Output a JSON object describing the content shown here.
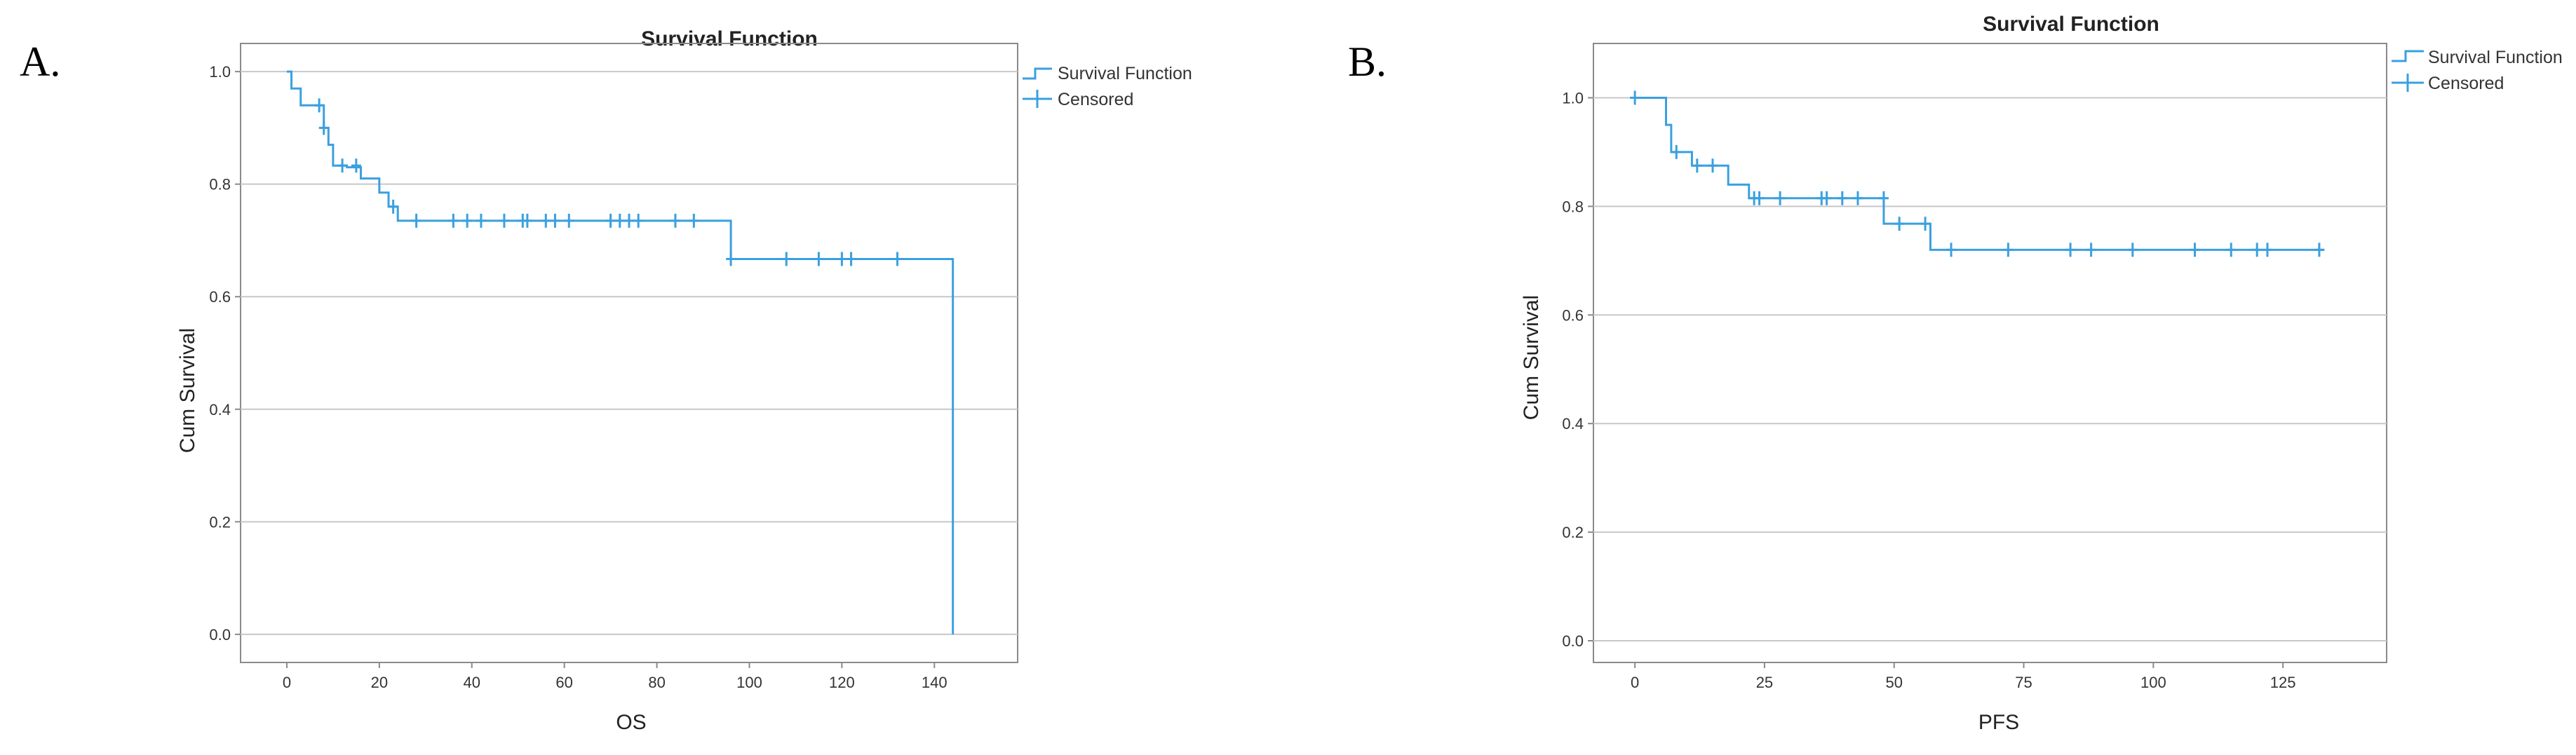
{
  "panels": [
    {
      "letter": "A.",
      "legend": [
        "Survival Function",
        "Censored"
      ]
    },
    {
      "letter": "B.",
      "legend": [
        "Survival Function",
        "Censored"
      ]
    }
  ],
  "colors": {
    "curve": "#3aa0e0",
    "grid": "#c8c8c8",
    "frame": "#8a8a8a"
  },
  "chart_data": [
    {
      "type": "line",
      "title": "Survival Function",
      "xlabel": "OS",
      "ylabel": "Cum Survival",
      "xlim": [
        -10,
        158
      ],
      "ylim": [
        -0.05,
        1.05
      ],
      "xticks": [
        0,
        20,
        40,
        60,
        80,
        100,
        120,
        140
      ],
      "yticks": [
        0.0,
        0.2,
        0.4,
        0.6,
        0.8,
        1.0
      ],
      "grid": true,
      "legend_position": "top-right",
      "series": [
        {
          "name": "Survival Function",
          "step": true,
          "x": [
            0,
            1,
            3,
            8,
            9,
            10,
            13,
            16,
            20,
            22,
            24,
            96,
            144,
            144
          ],
          "y": [
            1.0,
            0.97,
            0.94,
            0.9,
            0.87,
            0.833,
            0.83,
            0.81,
            0.785,
            0.76,
            0.735,
            0.667,
            0.667,
            0.0
          ]
        },
        {
          "name": "Censored",
          "x": [
            7,
            8,
            12,
            15,
            23,
            28,
            36,
            39,
            42,
            47,
            51,
            52,
            56,
            58,
            61,
            70,
            72,
            74,
            76,
            84,
            88,
            96,
            108,
            115,
            120,
            122,
            132
          ],
          "y": [
            0.94,
            0.9,
            0.833,
            0.833,
            0.76,
            0.735,
            0.735,
            0.735,
            0.735,
            0.735,
            0.735,
            0.735,
            0.735,
            0.735,
            0.735,
            0.735,
            0.735,
            0.735,
            0.735,
            0.735,
            0.735,
            0.667,
            0.667,
            0.667,
            0.667,
            0.667,
            0.667
          ]
        }
      ]
    },
    {
      "type": "line",
      "title": "Survival Function",
      "xlabel": "PFS",
      "ylabel": "Cum Survival",
      "xlim": [
        -8,
        145
      ],
      "ylim": [
        -0.04,
        1.1
      ],
      "xticks": [
        0,
        25,
        50,
        75,
        100,
        125
      ],
      "yticks": [
        0.0,
        0.2,
        0.4,
        0.6,
        0.8,
        1.0
      ],
      "grid": true,
      "legend_position": "top-right",
      "series": [
        {
          "name": "Survival Function",
          "step": true,
          "x": [
            0,
            6,
            7,
            11,
            18,
            22,
            48,
            57,
            133
          ],
          "y": [
            1.0,
            0.95,
            0.9,
            0.875,
            0.84,
            0.815,
            0.768,
            0.72,
            0.72
          ]
        },
        {
          "name": "Censored",
          "x": [
            0,
            8,
            12,
            15,
            23,
            24,
            28,
            36,
            37,
            40,
            43,
            48,
            51,
            56,
            61,
            72,
            84,
            88,
            96,
            108,
            115,
            120,
            122,
            132
          ],
          "y": [
            1.0,
            0.9,
            0.875,
            0.875,
            0.815,
            0.815,
            0.815,
            0.815,
            0.815,
            0.815,
            0.815,
            0.815,
            0.768,
            0.768,
            0.72,
            0.72,
            0.72,
            0.72,
            0.72,
            0.72,
            0.72,
            0.72,
            0.72,
            0.72
          ]
        }
      ]
    }
  ]
}
